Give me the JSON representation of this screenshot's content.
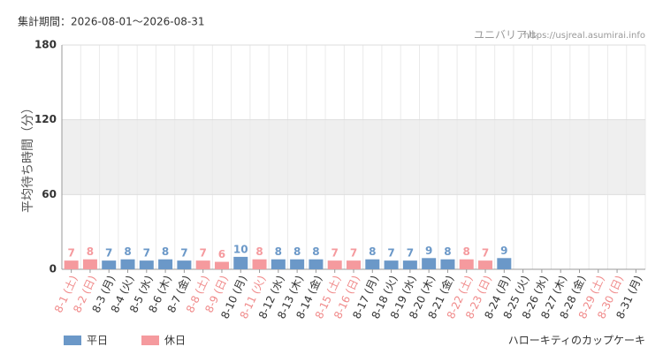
{
  "chart_data": {
    "type": "bar",
    "period": "集計期間：2026-08-01～2026-08-31",
    "source": "ユニバリアル",
    "url": "https://usjreal.asumirai.info",
    "ylabel": "平均待ち時間（分）",
    "subject": "ハローキティのカップケーキ",
    "categories": [
      "8-1 (土)",
      "8-2 (日)",
      "8-3 (月)",
      "8-4 (火)",
      "8-5 (水)",
      "8-6 (木)",
      "8-7 (金)",
      "8-8 (土)",
      "8-9 (日)",
      "8-10 (月)",
      "8-11 (火)",
      "8-12 (水)",
      "8-13 (木)",
      "8-14 (金)",
      "8-15 (土)",
      "8-16 (日)",
      "8-17 (月)",
      "8-18 (火)",
      "8-19 (水)",
      "8-20 (木)",
      "8-21 (金)",
      "8-22 (土)",
      "8-23 (日)",
      "8-24 (月)",
      "8-25 (火)",
      "8-26 (水)",
      "8-27 (木)",
      "8-28 (金)",
      "8-29 (土)",
      "8-30 (日)",
      "8-31 (月)"
    ],
    "category_label_colors": [
      "#f08a8a",
      "#f08a8a",
      "#333",
      "#333",
      "#333",
      "#333",
      "#333",
      "#f08a8a",
      "#f08a8a",
      "#333",
      "#f08a8a",
      "#333",
      "#333",
      "#333",
      "#f08a8a",
      "#f08a8a",
      "#333",
      "#333",
      "#333",
      "#333",
      "#333",
      "#f08a8a",
      "#f08a8a",
      "#333",
      "#333",
      "#333",
      "#333",
      "#333",
      "#f08a8a",
      "#f08a8a",
      "#333"
    ],
    "series": [
      {
        "name": "平日",
        "color": "#6b98c8",
        "values": [
          null,
          null,
          7,
          8,
          7,
          8,
          7,
          null,
          null,
          10,
          null,
          8,
          8,
          8,
          null,
          null,
          8,
          7,
          7,
          9,
          8,
          null,
          null,
          9,
          null,
          null,
          null,
          null,
          null,
          null,
          null
        ]
      },
      {
        "name": "休日",
        "color": "#f59a9e",
        "values": [
          7,
          8,
          null,
          null,
          null,
          null,
          null,
          7,
          6,
          null,
          8,
          null,
          null,
          null,
          7,
          7,
          null,
          null,
          null,
          null,
          null,
          8,
          7,
          null,
          null,
          null,
          null,
          null,
          null,
          null,
          null
        ]
      }
    ],
    "ylim": [
      0,
      180
    ],
    "yticks": [
      0,
      60,
      120,
      180
    ],
    "grid": true
  }
}
